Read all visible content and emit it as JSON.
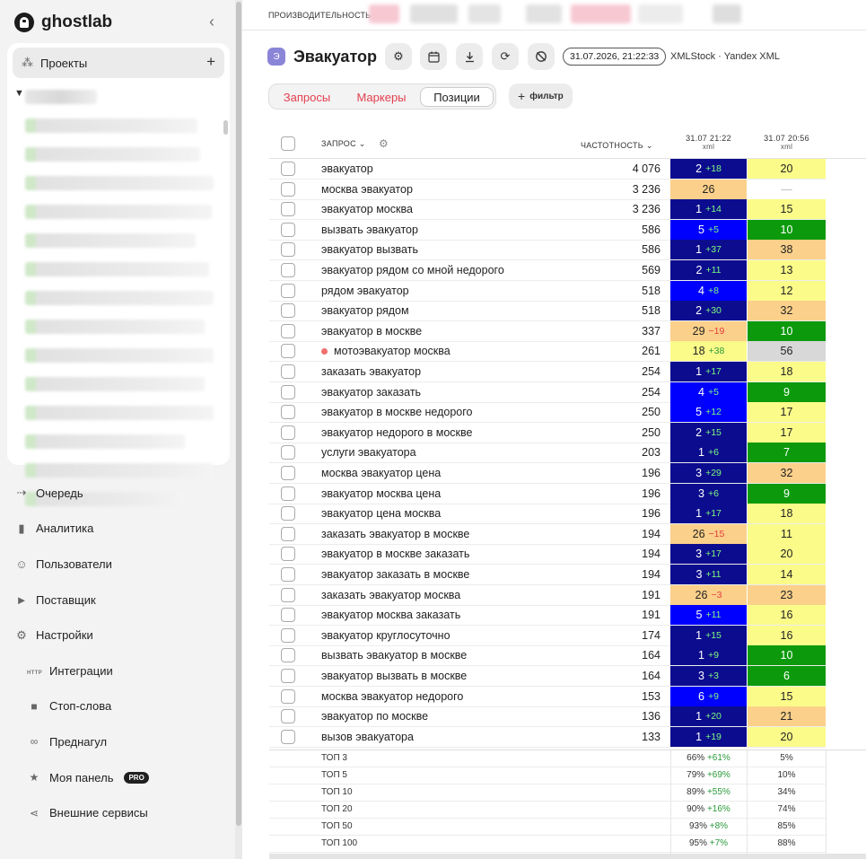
{
  "brand": {
    "name": "ghostlab"
  },
  "sidebar": {
    "projects_label": "Проекты",
    "nav": [
      {
        "label": "Очередь",
        "icon": "queue-icon"
      },
      {
        "label": "Аналитика",
        "icon": "bar-chart-icon"
      },
      {
        "label": "Пользователи",
        "icon": "users-icon"
      },
      {
        "label": "Поставщик",
        "icon": "provider-icon"
      },
      {
        "label": "Настройки",
        "icon": "gear-icon"
      }
    ],
    "settings_sub": [
      {
        "label": "Интеграции",
        "icon": "http-icon",
        "icon_text": "HTTP"
      },
      {
        "label": "Стоп-слова",
        "icon": "square-icon"
      },
      {
        "label": "Преднагул",
        "icon": "loop-icon"
      },
      {
        "label": "Моя панель",
        "icon": "star-icon",
        "badge": "PRO"
      },
      {
        "label": "Внешние сервисы",
        "icon": "share-icon"
      }
    ]
  },
  "topbar": {
    "performance_label": "ПРОИЗВОДИТЕЛЬНОСТЬ:"
  },
  "project": {
    "badge": "Э",
    "title": "Эвакуатор",
    "date": "31.07.2026, 21:22:33",
    "source": "XMLStock · Yandex XML"
  },
  "tabs": [
    {
      "label": "Запросы",
      "active": false
    },
    {
      "label": "Маркеры",
      "active": false
    },
    {
      "label": "Позиции",
      "active": true
    }
  ],
  "filter_label": "фильтр",
  "table": {
    "col_query": "ЗАПРОС",
    "col_freq": "ЧАСТОТНОСТЬ",
    "col_date1": "31.07 21:22",
    "col_date1_sub": "xml",
    "col_date2": "31.07 20:56",
    "col_date2_sub": "xml",
    "rows": [
      {
        "q": "эвакуатор",
        "f": "4 076",
        "p1": "2",
        "d": "+18",
        "p2": "20"
      },
      {
        "q": "москва эвакуатор",
        "f": "3 236",
        "p1": "26",
        "d": "",
        "p2": "—"
      },
      {
        "q": "эвакуатор москва",
        "f": "3 236",
        "p1": "1",
        "d": "+14",
        "p2": "15"
      },
      {
        "q": "вызвать эвакуатор",
        "f": "586",
        "p1": "5",
        "d": "+5",
        "p2": "10"
      },
      {
        "q": "эвакуатор вызвать",
        "f": "586",
        "p1": "1",
        "d": "+37",
        "p2": "38"
      },
      {
        "q": "эвакуатор рядом со мной недорого",
        "f": "569",
        "p1": "2",
        "d": "+11",
        "p2": "13"
      },
      {
        "q": "рядом эвакуатор",
        "f": "518",
        "p1": "4",
        "d": "+8",
        "p2": "12"
      },
      {
        "q": "эвакуатор рядом",
        "f": "518",
        "p1": "2",
        "d": "+30",
        "p2": "32"
      },
      {
        "q": "эвакуатор в москве",
        "f": "337",
        "p1": "29",
        "d": "−19",
        "p2": "10"
      },
      {
        "q": "мотоэвакуатор москва",
        "f": "261",
        "p1": "18",
        "d": "+38",
        "p2": "56",
        "marker": true
      },
      {
        "q": "заказать эвакуатор",
        "f": "254",
        "p1": "1",
        "d": "+17",
        "p2": "18"
      },
      {
        "q": "эвакуатор заказать",
        "f": "254",
        "p1": "4",
        "d": "+5",
        "p2": "9"
      },
      {
        "q": "эвакуатор в москве недорого",
        "f": "250",
        "p1": "5",
        "d": "+12",
        "p2": "17"
      },
      {
        "q": "эвакуатор недорого в москве",
        "f": "250",
        "p1": "2",
        "d": "+15",
        "p2": "17"
      },
      {
        "q": "услуги эвакуатора",
        "f": "203",
        "p1": "1",
        "d": "+6",
        "p2": "7"
      },
      {
        "q": "москва эвакуатор цена",
        "f": "196",
        "p1": "3",
        "d": "+29",
        "p2": "32"
      },
      {
        "q": "эвакуатор москва цена",
        "f": "196",
        "p1": "3",
        "d": "+6",
        "p2": "9"
      },
      {
        "q": "эвакуатор цена москва",
        "f": "196",
        "p1": "1",
        "d": "+17",
        "p2": "18"
      },
      {
        "q": "заказать эвакуатор в москве",
        "f": "194",
        "p1": "26",
        "d": "−15",
        "p2": "11"
      },
      {
        "q": "эвакуатор в москве заказать",
        "f": "194",
        "p1": "3",
        "d": "+17",
        "p2": "20"
      },
      {
        "q": "эвакуатор заказать в москве",
        "f": "194",
        "p1": "3",
        "d": "+11",
        "p2": "14"
      },
      {
        "q": "заказать эвакуатор москва",
        "f": "191",
        "p1": "26",
        "d": "−3",
        "p2": "23"
      },
      {
        "q": "эвакуатор москва заказать",
        "f": "191",
        "p1": "5",
        "d": "+11",
        "p2": "16"
      },
      {
        "q": "эвакуатор круглосуточно",
        "f": "174",
        "p1": "1",
        "d": "+15",
        "p2": "16"
      },
      {
        "q": "вызвать эвакуатор в москве",
        "f": "164",
        "p1": "1",
        "d": "+9",
        "p2": "10"
      },
      {
        "q": "эвакуатор вызвать в москве",
        "f": "164",
        "p1": "3",
        "d": "+3",
        "p2": "6"
      },
      {
        "q": "москва эвакуатор недорого",
        "f": "153",
        "p1": "6",
        "d": "+9",
        "p2": "15"
      },
      {
        "q": "эвакуатор по москве",
        "f": "136",
        "p1": "1",
        "d": "+20",
        "p2": "21"
      },
      {
        "q": "вызов эвакуатора",
        "f": "133",
        "p1": "1",
        "d": "+19",
        "p2": "20"
      }
    ],
    "tops": [
      {
        "label": "ТОП 3",
        "v1": "66%",
        "d": "+61%",
        "v2": "5%"
      },
      {
        "label": "ТОП 5",
        "v1": "79%",
        "d": "+69%",
        "v2": "10%"
      },
      {
        "label": "ТОП 10",
        "v1": "89%",
        "d": "+55%",
        "v2": "34%"
      },
      {
        "label": "ТОП 20",
        "v1": "90%",
        "d": "+16%",
        "v2": "74%"
      },
      {
        "label": "ТОП 50",
        "v1": "93%",
        "d": "+8%",
        "v2": "85%"
      },
      {
        "label": "ТОП 100",
        "v1": "95%",
        "d": "+7%",
        "v2": "88%"
      }
    ]
  },
  "colors": {
    "top3": "#0c0c8f",
    "top10": "#0000ff",
    "top10_pos2": "#0c9a0c",
    "top20": "#fbfb8a",
    "top30": "#fbd08a",
    "beyond": "#d8d8d8",
    "delta_up": "#7cfc7c",
    "delta_down": "#e23d3d"
  }
}
